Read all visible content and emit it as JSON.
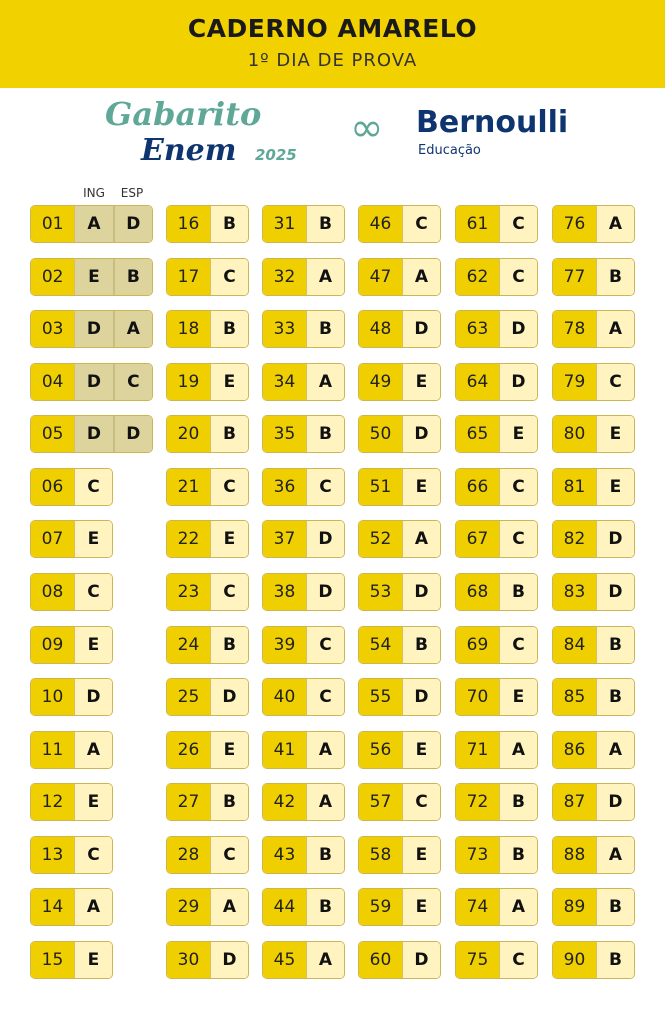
{
  "header": {
    "title": "CADERNO AMARELO",
    "subtitle": "1º DIA DE PROVA"
  },
  "logos": {
    "gabarito": "Gabarito",
    "enem": "Enem",
    "year": "2025",
    "brand": "Bernoulli",
    "brand_sub": "Educação"
  },
  "colors": {
    "header": "#f2d100",
    "number_bg": "#f0cf00",
    "answer_bg": "#fff4bf",
    "language_bg": "#ddd39c"
  },
  "language_headers": {
    "ing": "ING",
    "esp": "ESP"
  },
  "language_questions": [
    {
      "q": "01",
      "ing": "A",
      "esp": "D"
    },
    {
      "q": "02",
      "ing": "E",
      "esp": "B"
    },
    {
      "q": "03",
      "ing": "D",
      "esp": "A"
    },
    {
      "q": "04",
      "ing": "D",
      "esp": "C"
    },
    {
      "q": "05",
      "ing": "D",
      "esp": "D"
    }
  ],
  "columns": [
    [
      {
        "q": "06",
        "a": "C"
      },
      {
        "q": "07",
        "a": "E"
      },
      {
        "q": "08",
        "a": "C"
      },
      {
        "q": "09",
        "a": "E"
      },
      {
        "q": "10",
        "a": "D"
      },
      {
        "q": "11",
        "a": "A"
      },
      {
        "q": "12",
        "a": "E"
      },
      {
        "q": "13",
        "a": "C"
      },
      {
        "q": "14",
        "a": "A"
      },
      {
        "q": "15",
        "a": "E"
      }
    ],
    [
      {
        "q": "16",
        "a": "B"
      },
      {
        "q": "17",
        "a": "C"
      },
      {
        "q": "18",
        "a": "B"
      },
      {
        "q": "19",
        "a": "E"
      },
      {
        "q": "20",
        "a": "B"
      },
      {
        "q": "21",
        "a": "C"
      },
      {
        "q": "22",
        "a": "E"
      },
      {
        "q": "23",
        "a": "C"
      },
      {
        "q": "24",
        "a": "B"
      },
      {
        "q": "25",
        "a": "D"
      },
      {
        "q": "26",
        "a": "E"
      },
      {
        "q": "27",
        "a": "B"
      },
      {
        "q": "28",
        "a": "C"
      },
      {
        "q": "29",
        "a": "A"
      },
      {
        "q": "30",
        "a": "D"
      }
    ],
    [
      {
        "q": "31",
        "a": "B"
      },
      {
        "q": "32",
        "a": "A"
      },
      {
        "q": "33",
        "a": "B"
      },
      {
        "q": "34",
        "a": "A"
      },
      {
        "q": "35",
        "a": "B"
      },
      {
        "q": "36",
        "a": "C"
      },
      {
        "q": "37",
        "a": "D"
      },
      {
        "q": "38",
        "a": "D"
      },
      {
        "q": "39",
        "a": "C"
      },
      {
        "q": "40",
        "a": "C"
      },
      {
        "q": "41",
        "a": "A"
      },
      {
        "q": "42",
        "a": "A"
      },
      {
        "q": "43",
        "a": "B"
      },
      {
        "q": "44",
        "a": "B"
      },
      {
        "q": "45",
        "a": "A"
      }
    ],
    [
      {
        "q": "46",
        "a": "C"
      },
      {
        "q": "47",
        "a": "A"
      },
      {
        "q": "48",
        "a": "D"
      },
      {
        "q": "49",
        "a": "E"
      },
      {
        "q": "50",
        "a": "D"
      },
      {
        "q": "51",
        "a": "E"
      },
      {
        "q": "52",
        "a": "A"
      },
      {
        "q": "53",
        "a": "D"
      },
      {
        "q": "54",
        "a": "B"
      },
      {
        "q": "55",
        "a": "D"
      },
      {
        "q": "56",
        "a": "E"
      },
      {
        "q": "57",
        "a": "C"
      },
      {
        "q": "58",
        "a": "E"
      },
      {
        "q": "59",
        "a": "E"
      },
      {
        "q": "60",
        "a": "D"
      }
    ],
    [
      {
        "q": "61",
        "a": "C"
      },
      {
        "q": "62",
        "a": "C"
      },
      {
        "q": "63",
        "a": "D"
      },
      {
        "q": "64",
        "a": "D"
      },
      {
        "q": "65",
        "a": "E"
      },
      {
        "q": "66",
        "a": "C"
      },
      {
        "q": "67",
        "a": "C"
      },
      {
        "q": "68",
        "a": "B"
      },
      {
        "q": "69",
        "a": "C"
      },
      {
        "q": "70",
        "a": "E"
      },
      {
        "q": "71",
        "a": "A"
      },
      {
        "q": "72",
        "a": "B"
      },
      {
        "q": "73",
        "a": "B"
      },
      {
        "q": "74",
        "a": "A"
      },
      {
        "q": "75",
        "a": "C"
      }
    ],
    [
      {
        "q": "76",
        "a": "A"
      },
      {
        "q": "77",
        "a": "B"
      },
      {
        "q": "78",
        "a": "A"
      },
      {
        "q": "79",
        "a": "C"
      },
      {
        "q": "80",
        "a": "E"
      },
      {
        "q": "81",
        "a": "E"
      },
      {
        "q": "82",
        "a": "D"
      },
      {
        "q": "83",
        "a": "D"
      },
      {
        "q": "84",
        "a": "B"
      },
      {
        "q": "85",
        "a": "B"
      },
      {
        "q": "86",
        "a": "A"
      },
      {
        "q": "87",
        "a": "D"
      },
      {
        "q": "88",
        "a": "A"
      },
      {
        "q": "89",
        "a": "B"
      },
      {
        "q": "90",
        "a": "B"
      }
    ]
  ]
}
